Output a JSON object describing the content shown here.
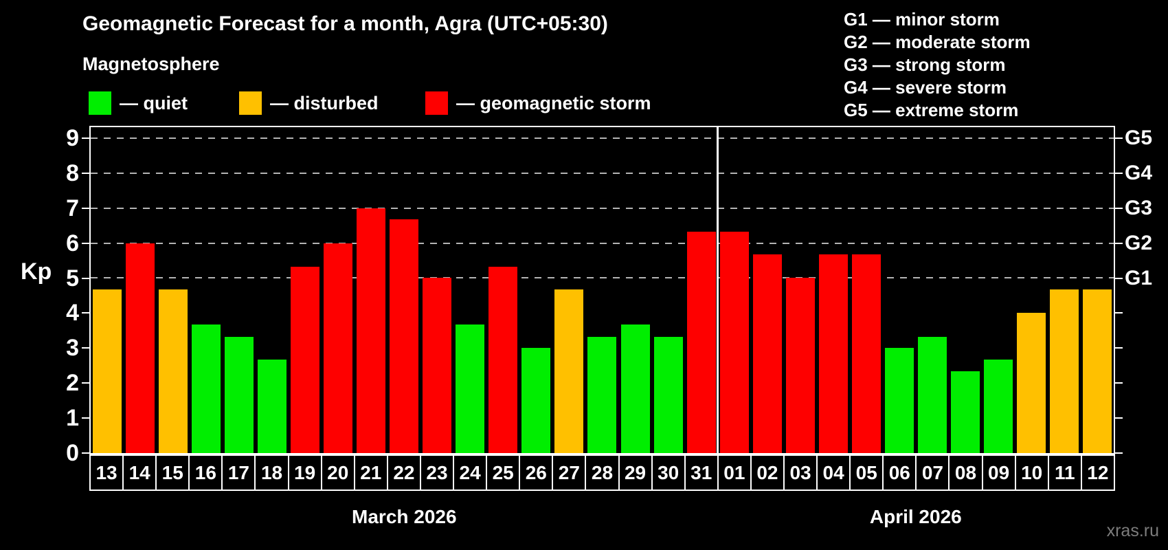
{
  "header": {
    "title": "Geomagnetic Forecast for a month, Agra (UTC+05:30)",
    "subtitle": "Magnetosphere"
  },
  "legend": {
    "items": [
      {
        "key": "quiet",
        "label": "— quiet",
        "color": "#00ee00",
        "x": 129
      },
      {
        "key": "disturbed",
        "label": "— disturbed",
        "color": "#ffc000",
        "x": 348
      },
      {
        "key": "storm",
        "label": "— geomagnetic storm",
        "color": "#fe0000",
        "x": 619
      }
    ]
  },
  "g_legend": {
    "separator": "—",
    "items": [
      {
        "code": "G1",
        "desc": "minor storm"
      },
      {
        "code": "G2",
        "desc": "moderate storm"
      },
      {
        "code": "G3",
        "desc": "strong storm"
      },
      {
        "code": "G4",
        "desc": "severe storm"
      },
      {
        "code": "G5",
        "desc": "extreme storm"
      }
    ]
  },
  "axes": {
    "y_label": "Kp",
    "y_ticks": [
      0,
      1,
      2,
      3,
      4,
      5,
      6,
      7,
      8,
      9
    ],
    "right_ticks": [
      {
        "kp": 5,
        "label": "G1"
      },
      {
        "kp": 6,
        "label": "G2"
      },
      {
        "kp": 7,
        "label": "G3"
      },
      {
        "kp": 8,
        "label": "G4"
      },
      {
        "kp": 9,
        "label": "G5"
      }
    ]
  },
  "months": [
    {
      "label": "March 2026",
      "days_span": 19
    },
    {
      "label": "April 2026",
      "days_span": 12
    }
  ],
  "status_colors": {
    "quiet": "#00ee00",
    "disturbed": "#ffc000",
    "storm": "#fe0000"
  },
  "watermark": "xras.ru",
  "chart_data": {
    "type": "bar",
    "title": "Geomagnetic Forecast for a month, Agra (UTC+05:30)",
    "xlabel": "",
    "ylabel": "Kp",
    "ylim": [
      0,
      9.35
    ],
    "grid_kp": [
      5,
      6,
      7,
      8,
      9
    ],
    "legend_position": "top",
    "x_categories": [
      "13",
      "14",
      "15",
      "16",
      "17",
      "18",
      "19",
      "20",
      "21",
      "22",
      "23",
      "24",
      "25",
      "26",
      "27",
      "28",
      "29",
      "30",
      "31",
      "01",
      "02",
      "03",
      "04",
      "05",
      "06",
      "07",
      "08",
      "09",
      "10",
      "11",
      "12"
    ],
    "bars": [
      {
        "day": "13",
        "month": "March 2026",
        "kp": 4.67,
        "status": "disturbed"
      },
      {
        "day": "14",
        "month": "March 2026",
        "kp": 6.0,
        "status": "storm"
      },
      {
        "day": "15",
        "month": "March 2026",
        "kp": 4.67,
        "status": "disturbed"
      },
      {
        "day": "16",
        "month": "March 2026",
        "kp": 3.67,
        "status": "quiet"
      },
      {
        "day": "17",
        "month": "March 2026",
        "kp": 3.33,
        "status": "quiet"
      },
      {
        "day": "18",
        "month": "March 2026",
        "kp": 2.67,
        "status": "quiet"
      },
      {
        "day": "19",
        "month": "March 2026",
        "kp": 5.33,
        "status": "storm"
      },
      {
        "day": "20",
        "month": "March 2026",
        "kp": 6.0,
        "status": "storm"
      },
      {
        "day": "21",
        "month": "March 2026",
        "kp": 7.0,
        "status": "storm"
      },
      {
        "day": "22",
        "month": "March 2026",
        "kp": 6.67,
        "status": "storm"
      },
      {
        "day": "23",
        "month": "March 2026",
        "kp": 5.0,
        "status": "storm"
      },
      {
        "day": "24",
        "month": "March 2026",
        "kp": 3.67,
        "status": "quiet"
      },
      {
        "day": "25",
        "month": "March 2026",
        "kp": 5.33,
        "status": "storm"
      },
      {
        "day": "26",
        "month": "March 2026",
        "kp": 3.0,
        "status": "quiet"
      },
      {
        "day": "27",
        "month": "March 2026",
        "kp": 4.67,
        "status": "disturbed"
      },
      {
        "day": "28",
        "month": "March 2026",
        "kp": 3.33,
        "status": "quiet"
      },
      {
        "day": "29",
        "month": "March 2026",
        "kp": 3.67,
        "status": "quiet"
      },
      {
        "day": "30",
        "month": "March 2026",
        "kp": 3.33,
        "status": "quiet"
      },
      {
        "day": "31",
        "month": "March 2026",
        "kp": 6.33,
        "status": "storm"
      },
      {
        "day": "01",
        "month": "April 2026",
        "kp": 6.33,
        "status": "storm"
      },
      {
        "day": "02",
        "month": "April 2026",
        "kp": 5.67,
        "status": "storm"
      },
      {
        "day": "03",
        "month": "April 2026",
        "kp": 5.0,
        "status": "storm"
      },
      {
        "day": "04",
        "month": "April 2026",
        "kp": 5.67,
        "status": "storm"
      },
      {
        "day": "05",
        "month": "April 2026",
        "kp": 5.67,
        "status": "storm"
      },
      {
        "day": "06",
        "month": "April 2026",
        "kp": 3.0,
        "status": "quiet"
      },
      {
        "day": "07",
        "month": "April 2026",
        "kp": 3.33,
        "status": "quiet"
      },
      {
        "day": "08",
        "month": "April 2026",
        "kp": 2.33,
        "status": "quiet"
      },
      {
        "day": "09",
        "month": "April 2026",
        "kp": 2.67,
        "status": "quiet"
      },
      {
        "day": "10",
        "month": "April 2026",
        "kp": 4.0,
        "status": "disturbed"
      },
      {
        "day": "11",
        "month": "April 2026",
        "kp": 4.67,
        "status": "disturbed"
      },
      {
        "day": "12",
        "month": "April 2026",
        "kp": 4.67,
        "status": "disturbed"
      }
    ]
  }
}
